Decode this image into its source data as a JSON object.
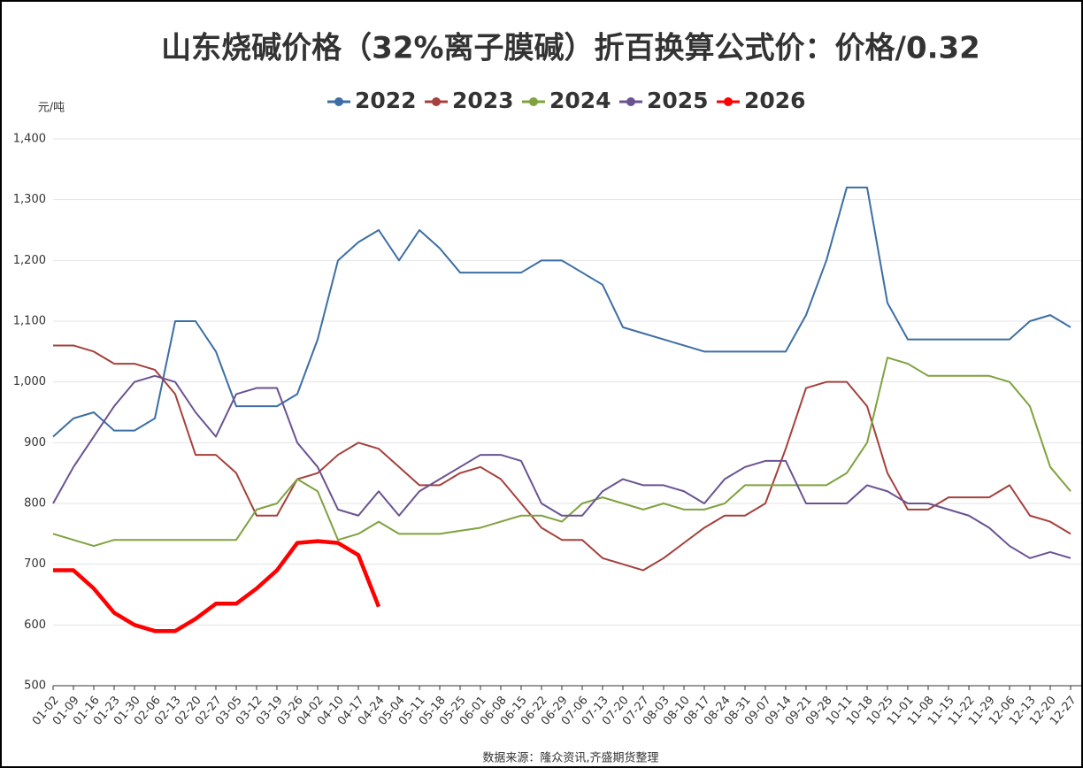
{
  "chart_data": {
    "type": "line",
    "title": "山东烧碱价格（32%离子膜碱）折百换算公式价：价格/0.32",
    "y_unit": "元/吨",
    "source": "数据来源：隆众资讯,齐盛期货整理",
    "categories": [
      "01-02",
      "01-09",
      "01-16",
      "01-23",
      "01-30",
      "02-06",
      "02-13",
      "02-20",
      "02-27",
      "03-05",
      "03-12",
      "03-19",
      "03-26",
      "04-02",
      "04-10",
      "04-17",
      "04-24",
      "05-04",
      "05-11",
      "05-18",
      "05-25",
      "06-01",
      "06-08",
      "06-15",
      "06-22",
      "06-29",
      "07-06",
      "07-13",
      "07-20",
      "07-27",
      "08-03",
      "08-10",
      "08-17",
      "08-24",
      "08-31",
      "09-07",
      "09-14",
      "09-21",
      "09-28",
      "10-11",
      "10-18",
      "10-25",
      "11-01",
      "11-08",
      "11-15",
      "11-22",
      "11-29",
      "12-06",
      "12-13",
      "12-20",
      "12-27"
    ],
    "series": [
      {
        "name": "2022",
        "color": "#3c6ea5",
        "width": 2,
        "values": [
          910,
          940,
          950,
          920,
          920,
          940,
          1100,
          1100,
          1050,
          960,
          960,
          960,
          980,
          1070,
          1200,
          1230,
          1250,
          1200,
          1250,
          1220,
          1180,
          1180,
          1180,
          1180,
          1200,
          1200,
          1180,
          1160,
          1090,
          1080,
          1070,
          1060,
          1050,
          1050,
          1050,
          1050,
          1050,
          1110,
          1200,
          1320,
          1320,
          1130,
          1070,
          1070,
          1070,
          1070,
          1070,
          1070,
          1100,
          1110,
          1090
        ]
      },
      {
        "name": "2023",
        "color": "#a5403c",
        "width": 2,
        "values": [
          1060,
          1060,
          1050,
          1030,
          1030,
          1020,
          980,
          880,
          880,
          850,
          780,
          780,
          840,
          850,
          880,
          900,
          890,
          860,
          830,
          830,
          850,
          860,
          840,
          800,
          760,
          740,
          740,
          710,
          700,
          690,
          710,
          735,
          760,
          780,
          780,
          800,
          890,
          990,
          1000,
          1000,
          960,
          850,
          790,
          790,
          810,
          810,
          810,
          830,
          780,
          770,
          750
        ]
      },
      {
        "name": "2024",
        "color": "#7fa23e",
        "width": 2,
        "values": [
          750,
          740,
          730,
          740,
          740,
          740,
          740,
          740,
          740,
          740,
          790,
          800,
          840,
          820,
          740,
          750,
          770,
          750,
          750,
          750,
          755,
          760,
          770,
          780,
          780,
          770,
          800,
          810,
          800,
          790,
          800,
          790,
          790,
          800,
          830,
          830,
          830,
          830,
          830,
          850,
          900,
          1040,
          1030,
          1010,
          1010,
          1010,
          1010,
          1000,
          960,
          860,
          820
        ]
      },
      {
        "name": "2025",
        "color": "#6a5291",
        "width": 2,
        "values": [
          800,
          860,
          910,
          960,
          1000,
          1010,
          1000,
          950,
          910,
          980,
          990,
          990,
          900,
          860,
          790,
          780,
          820,
          780,
          820,
          840,
          860,
          880,
          880,
          870,
          800,
          780,
          780,
          820,
          840,
          830,
          830,
          820,
          800,
          840,
          860,
          870,
          870,
          800,
          800,
          800,
          830,
          820,
          800,
          800,
          790,
          780,
          760,
          730,
          710,
          720,
          710
        ]
      },
      {
        "name": "2026",
        "color": "#ff0000",
        "width": 4.5,
        "values": [
          690,
          690,
          660,
          620,
          600,
          590,
          590,
          610,
          635,
          635,
          660,
          690,
          735,
          738,
          735,
          715,
          630,
          null,
          null,
          null,
          null,
          null,
          null,
          null,
          null,
          null,
          null,
          null,
          null,
          null,
          null,
          null,
          null,
          null,
          null,
          null,
          null,
          null,
          null,
          null,
          null,
          null,
          null,
          null,
          null,
          null,
          null,
          null,
          null,
          null,
          null
        ]
      }
    ],
    "ylim": [
      500,
      1400
    ],
    "yticks": [
      500,
      600,
      700,
      800,
      900,
      {
        "value": 1000,
        "label": "1,000"
      },
      {
        "value": 1100,
        "label": "1,100"
      },
      {
        "value": 1200,
        "label": "1,200"
      },
      {
        "value": 1300,
        "label": "1,300"
      },
      {
        "value": 1400,
        "label": "1,400"
      }
    ],
    "grid": true,
    "legend": "top"
  }
}
